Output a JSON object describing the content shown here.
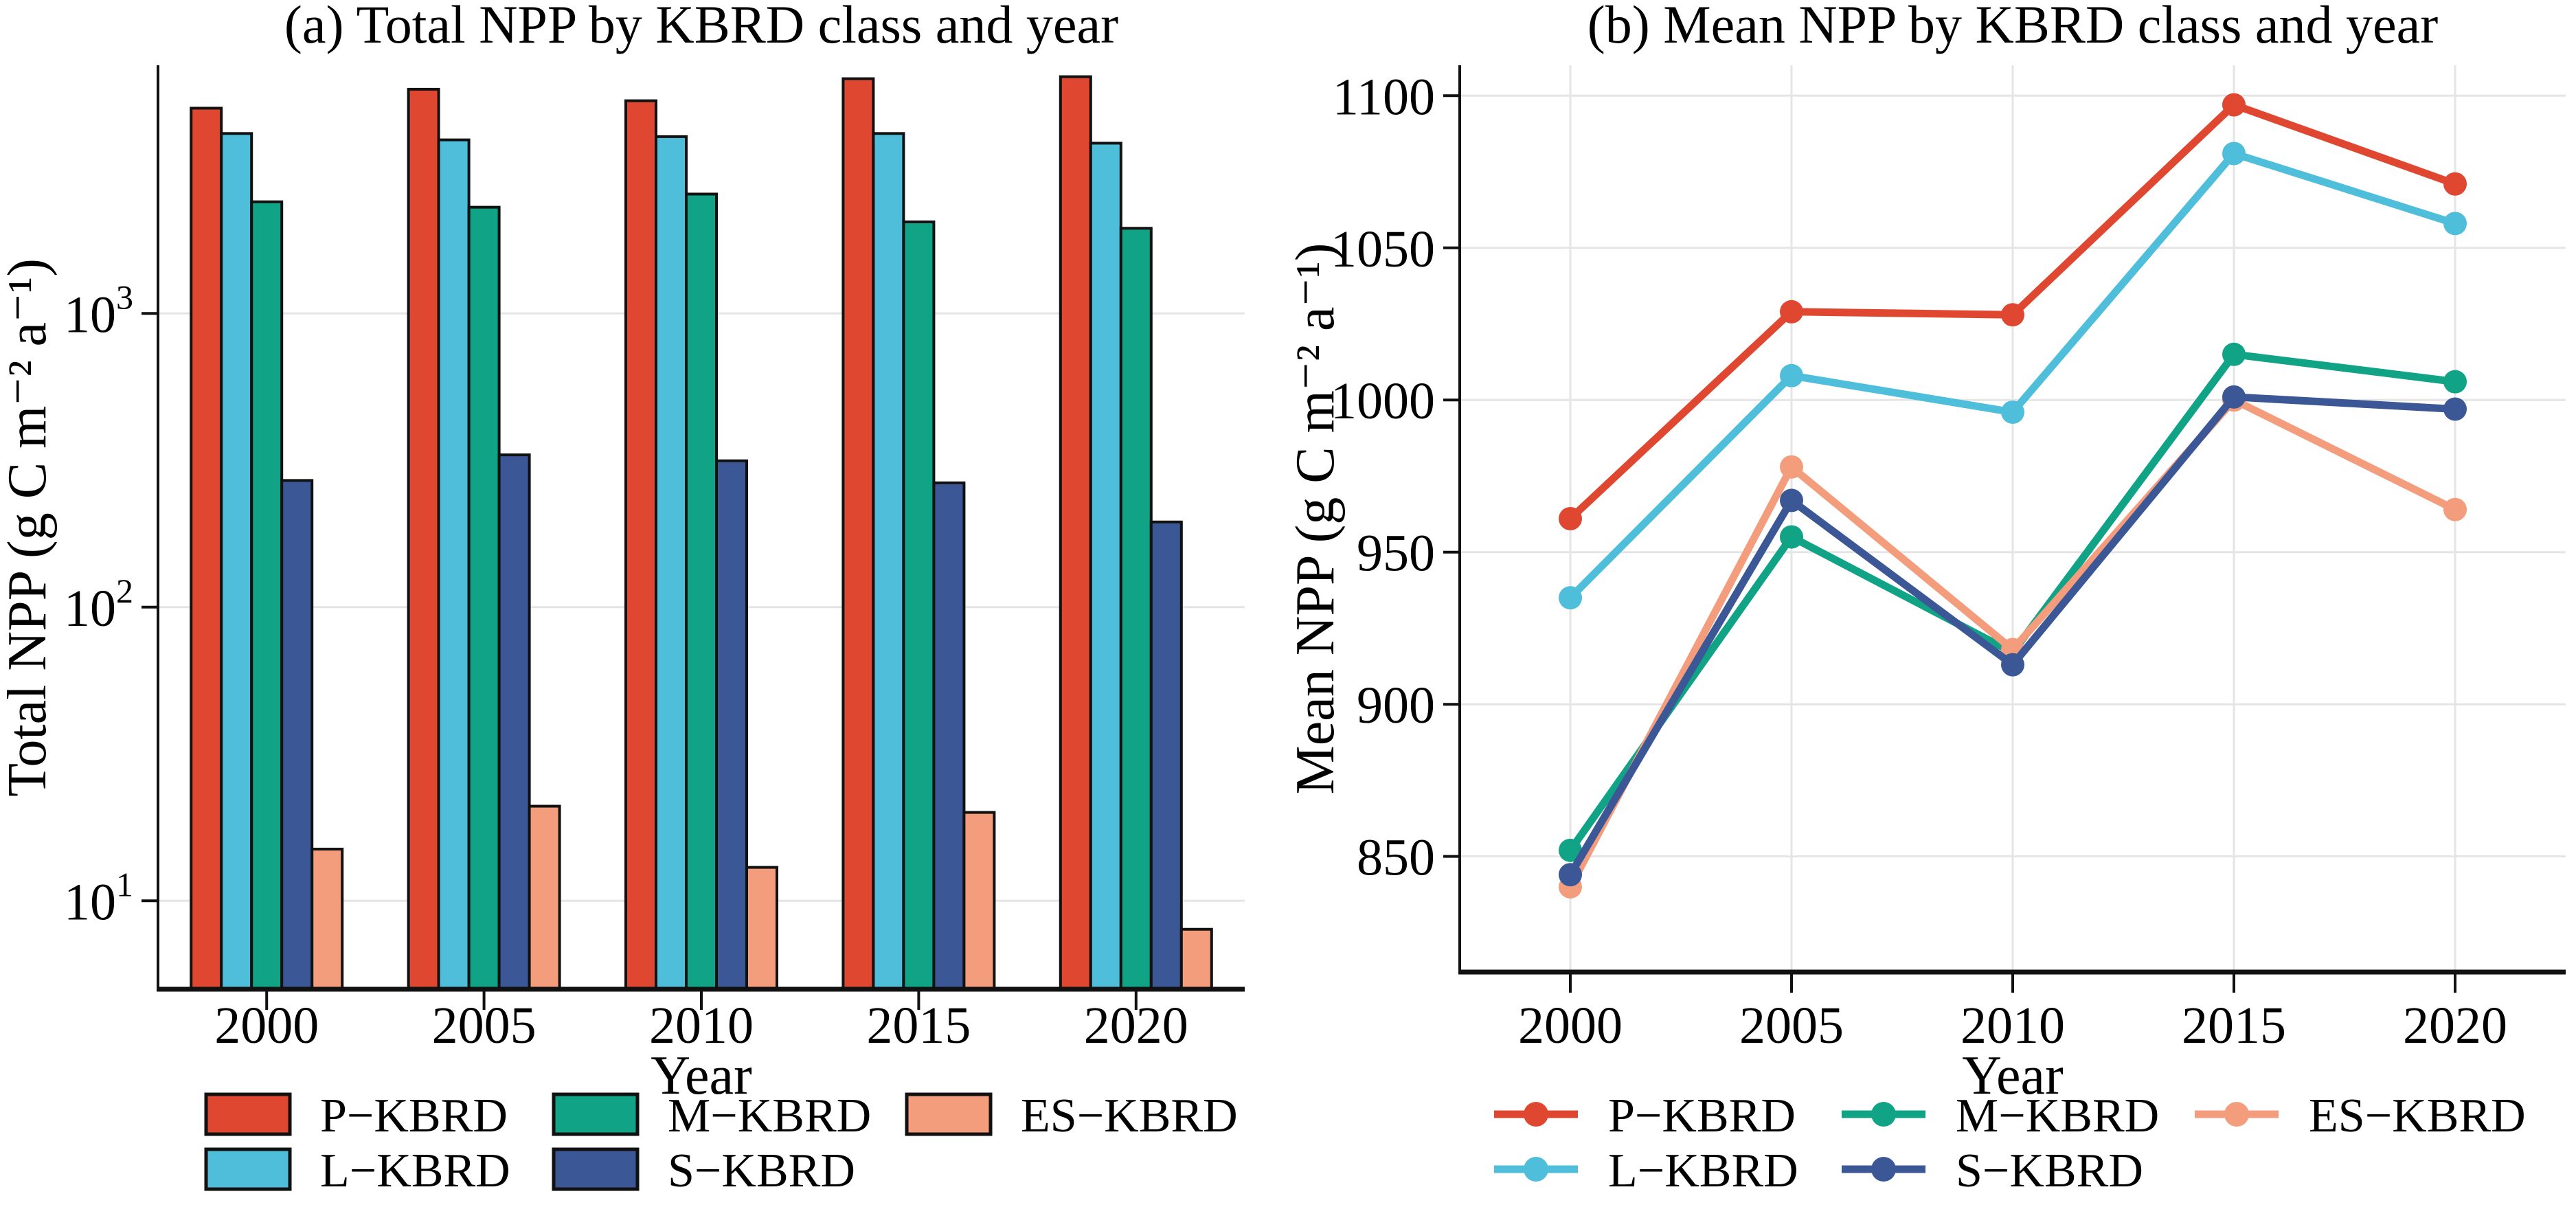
{
  "figure": {
    "background": "#ffffff",
    "text_color": "#000000",
    "grid_color": "#e5e5e5",
    "axis_color": "#111111"
  },
  "chart_data": [
    {
      "type": "bar",
      "panel": "a",
      "title": "(a) Total NPP by KBRD class and year",
      "xlabel": "Year",
      "ylabel": "Total NPP (g C m⁻² a⁻¹)",
      "yscale": "log",
      "ylim": [
        5,
        7000
      ],
      "yticks": [
        10,
        100,
        1000
      ],
      "log_base_label": "10",
      "grid": "horizontal",
      "legend_marker": "rect",
      "categories": [
        "2000",
        "2005",
        "2010",
        "2015",
        "2020"
      ],
      "series": [
        {
          "name": "P−KBRD",
          "color": "#E04731",
          "values": [
            5000,
            5800,
            5300,
            6300,
            6400
          ]
        },
        {
          "name": "L−KBRD",
          "color": "#4FBEDA",
          "values": [
            4100,
            3900,
            4000,
            4100,
            3800
          ]
        },
        {
          "name": "M−KBRD",
          "color": "#10A386",
          "values": [
            2400,
            2300,
            2550,
            2050,
            1950
          ]
        },
        {
          "name": "S−KBRD",
          "color": "#3C5795",
          "values": [
            270,
            330,
            315,
            265,
            195
          ]
        },
        {
          "name": "ES−KBRD",
          "color": "#F39D7D",
          "values": [
            15,
            21,
            13,
            20,
            8
          ]
        }
      ],
      "legend_rows": [
        [
          "P−KBRD",
          "M−KBRD",
          "ES−KBRD"
        ],
        [
          "L−KBRD",
          "S−KBRD"
        ]
      ]
    },
    {
      "type": "line",
      "panel": "b",
      "title": "(b) Mean NPP by KBRD class and year",
      "xlabel": "Year",
      "ylabel": "Mean NPP (g C m⁻² a⁻¹)",
      "yscale": "linear",
      "ylim": [
        812,
        1110
      ],
      "yticks": [
        850,
        900,
        950,
        1000,
        1050,
        1100
      ],
      "grid": "both",
      "legend_marker": "line-dot",
      "categories": [
        "2000",
        "2005",
        "2010",
        "2015",
        "2020"
      ],
      "series": [
        {
          "name": "P−KBRD",
          "color": "#E04731",
          "values": [
            961,
            1029,
            1028,
            1097,
            1071
          ]
        },
        {
          "name": "L−KBRD",
          "color": "#4FBEDA",
          "values": [
            935,
            1008,
            996,
            1081,
            1058
          ]
        },
        {
          "name": "M−KBRD",
          "color": "#10A386",
          "values": [
            852,
            955,
            917,
            1015,
            1006
          ]
        },
        {
          "name": "S−KBRD",
          "color": "#3C5795",
          "values": [
            844,
            967,
            913,
            1001,
            997
          ]
        },
        {
          "name": "ES−KBRD",
          "color": "#F39D7D",
          "values": [
            840,
            978,
            918,
            1000,
            964
          ]
        }
      ],
      "draw_order": [
        "M−KBRD",
        "ES−KBRD",
        "S−KBRD",
        "L−KBRD",
        "P−KBRD"
      ],
      "legend_rows": [
        [
          "P−KBRD",
          "M−KBRD",
          "ES−KBRD"
        ],
        [
          "L−KBRD",
          "S−KBRD"
        ]
      ]
    }
  ]
}
